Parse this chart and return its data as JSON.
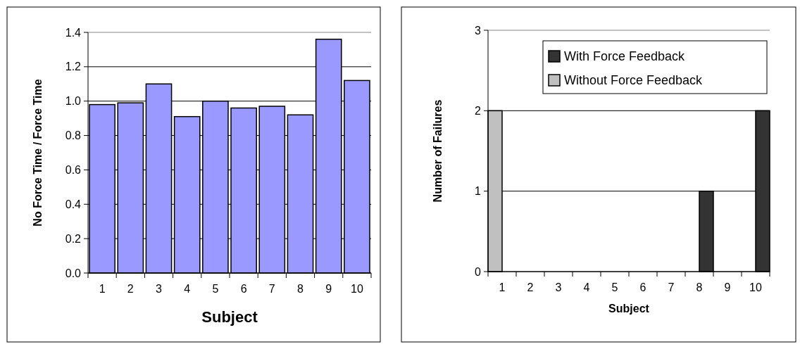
{
  "chart_data": [
    {
      "type": "bar",
      "xlabel": "Subject",
      "ylabel": "No Force Time / Force Time",
      "categories": [
        "1",
        "2",
        "3",
        "4",
        "5",
        "6",
        "7",
        "8",
        "9",
        "10"
      ],
      "values": [
        0.98,
        0.99,
        1.1,
        0.91,
        1.0,
        0.96,
        0.97,
        0.92,
        1.36,
        1.12
      ],
      "color": "#9999ff",
      "ylim": [
        0,
        1.4
      ],
      "yticks": [
        {
          "value": 0,
          "label": "0.0"
        },
        {
          "value": 0.2,
          "label": "0.2"
        },
        {
          "value": 0.4,
          "label": "0.4"
        },
        {
          "value": 0.6,
          "label": "0.6"
        },
        {
          "value": 0.8,
          "label": "0.8"
        },
        {
          "value": 1.0,
          "label": "1.0"
        },
        {
          "value": 1.2,
          "label": "1.2"
        },
        {
          "value": 1.4,
          "label": "1.4"
        }
      ],
      "grid": "y",
      "legend": false
    },
    {
      "type": "bar",
      "xlabel": "Subject",
      "ylabel": "Number of Failures",
      "categories": [
        "1",
        "2",
        "3",
        "4",
        "5",
        "6",
        "7",
        "8",
        "9",
        "10"
      ],
      "series": [
        {
          "name": "With Force Feedback",
          "color": "#333333",
          "values": [
            0,
            0,
            0,
            0,
            0,
            0,
            0,
            1,
            0,
            2
          ]
        },
        {
          "name": "Without Force Feedback",
          "color": "#c0c0c0",
          "values": [
            2,
            0,
            0,
            0,
            0,
            0,
            0,
            0,
            0,
            0
          ]
        }
      ],
      "ylim": [
        0,
        3
      ],
      "yticks": [
        0,
        1,
        2,
        3
      ],
      "grid": "y",
      "legend": "top right"
    }
  ]
}
